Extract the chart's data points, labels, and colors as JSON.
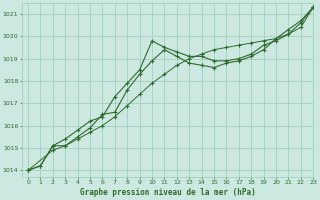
{
  "title": "Graphe pression niveau de la mer (hPa)",
  "bg_color": "#cce8e0",
  "grid_color": "#99ccbb",
  "line_color": "#2d6b2d",
  "xlim": [
    -0.5,
    23
  ],
  "ylim": [
    1013.7,
    1021.5
  ],
  "xticks": [
    0,
    1,
    2,
    3,
    4,
    5,
    6,
    7,
    8,
    9,
    10,
    11,
    12,
    13,
    14,
    15,
    16,
    17,
    18,
    19,
    20,
    21,
    22,
    23
  ],
  "yticks": [
    1014,
    1015,
    1016,
    1017,
    1018,
    1019,
    1020,
    1021
  ],
  "series1_x": [
    0,
    1,
    2,
    3,
    4,
    5,
    6,
    7,
    8,
    9,
    10,
    11,
    12,
    13,
    14,
    15,
    16,
    17,
    18,
    19,
    20,
    21,
    22,
    23
  ],
  "series1_y": [
    1014.0,
    1014.2,
    1015.1,
    1015.4,
    1015.8,
    1016.2,
    1016.4,
    1017.3,
    1017.9,
    1018.5,
    1019.8,
    1019.5,
    1019.3,
    1019.1,
    1019.1,
    1018.9,
    1018.9,
    1019.0,
    1019.2,
    1019.6,
    1019.8,
    1020.1,
    1020.6,
    1021.3
  ],
  "series2_x": [
    0,
    1,
    2,
    3,
    4,
    5,
    6,
    7,
    8,
    9,
    10,
    11,
    12,
    13,
    14,
    15,
    16,
    17,
    18,
    19,
    20,
    21,
    22,
    23
  ],
  "series2_y": [
    1014.0,
    1014.2,
    1015.1,
    1015.1,
    1015.5,
    1015.9,
    1016.5,
    1016.6,
    1017.6,
    1018.3,
    1018.9,
    1019.4,
    1019.1,
    1018.8,
    1018.7,
    1018.6,
    1018.8,
    1018.9,
    1019.1,
    1019.4,
    1019.9,
    1020.3,
    1020.7,
    1021.3
  ],
  "series3_x": [
    0,
    2,
    3,
    4,
    5,
    6,
    7,
    8,
    9,
    10,
    11,
    12,
    13,
    14,
    15,
    16,
    17,
    18,
    19,
    20,
    21,
    22,
    23
  ],
  "series3_y": [
    1014.0,
    1014.9,
    1015.1,
    1015.4,
    1015.7,
    1016.0,
    1016.4,
    1016.9,
    1017.4,
    1017.9,
    1018.3,
    1018.7,
    1019.0,
    1019.2,
    1019.4,
    1019.5,
    1019.6,
    1019.7,
    1019.8,
    1019.9,
    1020.1,
    1020.4,
    1021.3
  ]
}
